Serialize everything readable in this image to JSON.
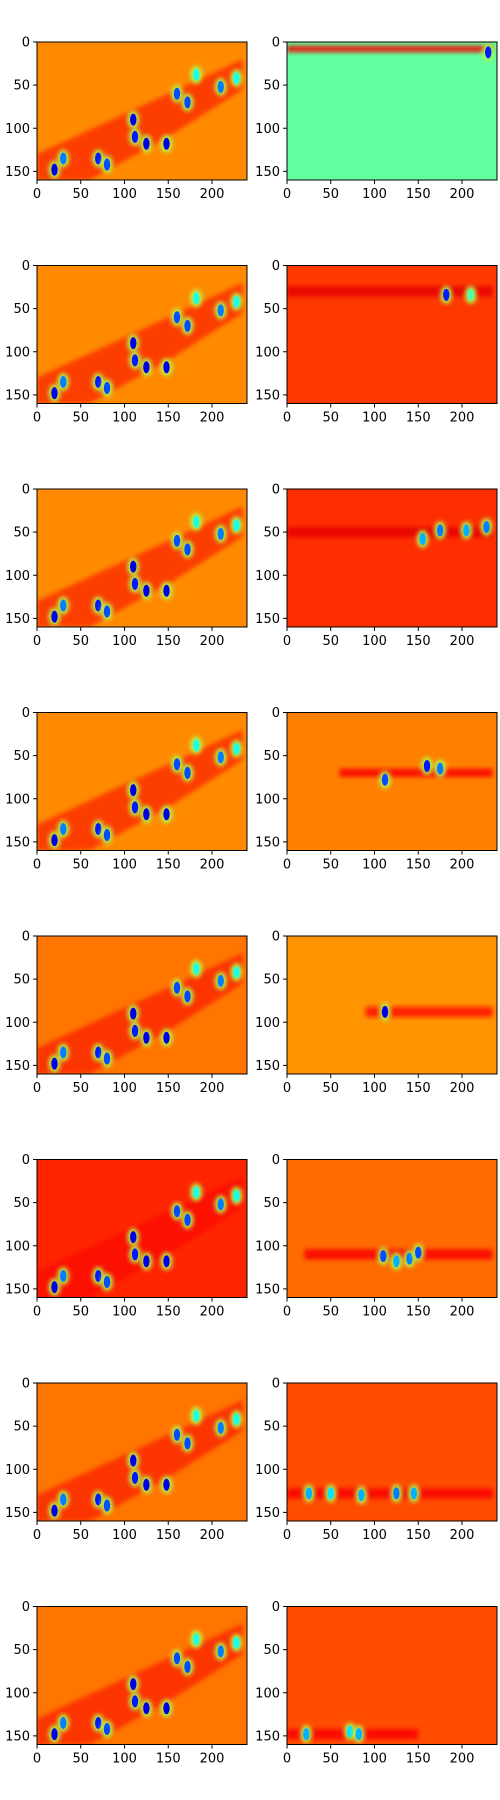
{
  "chart_data": {
    "type": "heatmap",
    "layout": {
      "rows": 8,
      "cols": 2
    },
    "colormap": "jet",
    "axes": {
      "x_ticks": [
        0,
        50,
        100,
        150,
        200
      ],
      "y_ticks": [
        0,
        50,
        100,
        150
      ],
      "xlim": [
        0,
        240
      ],
      "ylim": [
        160,
        0
      ],
      "y_inverted": true
    },
    "panels": [
      {
        "row": 0,
        "col": 0,
        "bg": 0.74,
        "blobs": [
          [
            20,
            148,
            0.1
          ],
          [
            30,
            135,
            0.25
          ],
          [
            70,
            135,
            0.15
          ],
          [
            80,
            142,
            0.2
          ],
          [
            110,
            90,
            0.1
          ],
          [
            112,
            110,
            0.15
          ],
          [
            125,
            118,
            0.1
          ],
          [
            148,
            118,
            0.1
          ],
          [
            160,
            60,
            0.2
          ],
          [
            172,
            70,
            0.2
          ],
          [
            182,
            38,
            0.4
          ],
          [
            210,
            52,
            0.25
          ],
          [
            228,
            42,
            0.4
          ]
        ],
        "bands": []
      },
      {
        "row": 0,
        "col": 1,
        "bg": 0.47,
        "blobs": [
          [
            230,
            12,
            0.15
          ]
        ],
        "bands": [
          [
            0,
            235,
            8,
            0.88,
            4
          ]
        ]
      },
      {
        "row": 1,
        "col": 0,
        "bg": 0.74,
        "blobs": [
          [
            20,
            148,
            0.1
          ],
          [
            30,
            135,
            0.25
          ],
          [
            70,
            135,
            0.15
          ],
          [
            80,
            142,
            0.2
          ],
          [
            110,
            90,
            0.1
          ],
          [
            112,
            110,
            0.15
          ],
          [
            125,
            118,
            0.1
          ],
          [
            148,
            118,
            0.1
          ],
          [
            160,
            60,
            0.2
          ],
          [
            172,
            70,
            0.2
          ],
          [
            182,
            38,
            0.4
          ],
          [
            210,
            52,
            0.25
          ],
          [
            228,
            42,
            0.4
          ]
        ],
        "bands": []
      },
      {
        "row": 1,
        "col": 1,
        "bg": 0.82,
        "blobs": [
          [
            182,
            34,
            0.15
          ],
          [
            210,
            34,
            0.45
          ]
        ],
        "bands": [
          [
            0,
            235,
            30,
            0.9,
            6
          ]
        ]
      },
      {
        "row": 2,
        "col": 0,
        "bg": 0.74,
        "blobs": [
          [
            20,
            148,
            0.1
          ],
          [
            30,
            135,
            0.25
          ],
          [
            70,
            135,
            0.15
          ],
          [
            80,
            142,
            0.2
          ],
          [
            110,
            90,
            0.1
          ],
          [
            112,
            110,
            0.15
          ],
          [
            125,
            118,
            0.1
          ],
          [
            148,
            118,
            0.1
          ],
          [
            160,
            60,
            0.2
          ],
          [
            172,
            70,
            0.2
          ],
          [
            182,
            38,
            0.4
          ],
          [
            210,
            52,
            0.25
          ],
          [
            228,
            42,
            0.4
          ]
        ],
        "bands": []
      },
      {
        "row": 2,
        "col": 1,
        "bg": 0.83,
        "blobs": [
          [
            155,
            58,
            0.3
          ],
          [
            175,
            48,
            0.25
          ],
          [
            205,
            48,
            0.3
          ],
          [
            228,
            44,
            0.25
          ]
        ],
        "bands": [
          [
            0,
            235,
            50,
            0.9,
            6
          ]
        ]
      },
      {
        "row": 3,
        "col": 0,
        "bg": 0.74,
        "blobs": [
          [
            20,
            148,
            0.1
          ],
          [
            30,
            135,
            0.25
          ],
          [
            70,
            135,
            0.15
          ],
          [
            80,
            142,
            0.2
          ],
          [
            110,
            90,
            0.1
          ],
          [
            112,
            110,
            0.15
          ],
          [
            125,
            118,
            0.1
          ],
          [
            148,
            118,
            0.1
          ],
          [
            160,
            60,
            0.2
          ],
          [
            172,
            70,
            0.2
          ],
          [
            182,
            38,
            0.4
          ],
          [
            210,
            52,
            0.25
          ],
          [
            228,
            42,
            0.4
          ]
        ],
        "bands": []
      },
      {
        "row": 3,
        "col": 1,
        "bg": 0.75,
        "blobs": [
          [
            112,
            78,
            0.2
          ],
          [
            160,
            62,
            0.15
          ],
          [
            175,
            65,
            0.25
          ]
        ],
        "bands": [
          [
            60,
            235,
            70,
            0.88,
            5
          ]
        ]
      },
      {
        "row": 4,
        "col": 0,
        "bg": 0.76,
        "blobs": [
          [
            20,
            148,
            0.1
          ],
          [
            30,
            135,
            0.25
          ],
          [
            70,
            135,
            0.15
          ],
          [
            80,
            142,
            0.2
          ],
          [
            110,
            90,
            0.1
          ],
          [
            112,
            110,
            0.15
          ],
          [
            125,
            118,
            0.1
          ],
          [
            148,
            118,
            0.1
          ],
          [
            160,
            60,
            0.2
          ],
          [
            172,
            70,
            0.2
          ],
          [
            182,
            38,
            0.4
          ],
          [
            210,
            52,
            0.25
          ],
          [
            228,
            42,
            0.4
          ]
        ],
        "bands": []
      },
      {
        "row": 4,
        "col": 1,
        "bg": 0.73,
        "blobs": [
          [
            112,
            88,
            0.1
          ]
        ],
        "bands": [
          [
            90,
            235,
            88,
            0.86,
            6
          ]
        ]
      },
      {
        "row": 5,
        "col": 0,
        "bg": 0.84,
        "blobs": [
          [
            20,
            148,
            0.1
          ],
          [
            30,
            135,
            0.25
          ],
          [
            70,
            135,
            0.15
          ],
          [
            80,
            142,
            0.2
          ],
          [
            110,
            90,
            0.1
          ],
          [
            112,
            110,
            0.15
          ],
          [
            125,
            118,
            0.1
          ],
          [
            148,
            118,
            0.1
          ],
          [
            160,
            60,
            0.2
          ],
          [
            172,
            70,
            0.2
          ],
          [
            182,
            38,
            0.4
          ],
          [
            210,
            52,
            0.25
          ],
          [
            228,
            42,
            0.4
          ]
        ],
        "bands": []
      },
      {
        "row": 5,
        "col": 1,
        "bg": 0.77,
        "blobs": [
          [
            110,
            112,
            0.2
          ],
          [
            125,
            118,
            0.3
          ],
          [
            140,
            115,
            0.25
          ],
          [
            150,
            108,
            0.2
          ]
        ],
        "bands": [
          [
            20,
            235,
            110,
            0.88,
            6
          ]
        ]
      },
      {
        "row": 6,
        "col": 0,
        "bg": 0.76,
        "blobs": [
          [
            20,
            148,
            0.1
          ],
          [
            30,
            135,
            0.25
          ],
          [
            70,
            135,
            0.15
          ],
          [
            80,
            142,
            0.2
          ],
          [
            110,
            90,
            0.1
          ],
          [
            112,
            110,
            0.15
          ],
          [
            125,
            118,
            0.1
          ],
          [
            148,
            118,
            0.1
          ],
          [
            160,
            60,
            0.2
          ],
          [
            172,
            70,
            0.2
          ],
          [
            182,
            38,
            0.4
          ],
          [
            210,
            52,
            0.25
          ],
          [
            228,
            42,
            0.4
          ]
        ],
        "bands": []
      },
      {
        "row": 6,
        "col": 1,
        "bg": 0.8,
        "blobs": [
          [
            25,
            128,
            0.3
          ],
          [
            50,
            128,
            0.35
          ],
          [
            85,
            130,
            0.3
          ],
          [
            125,
            128,
            0.25
          ],
          [
            145,
            128,
            0.3
          ]
        ],
        "bands": [
          [
            0,
            235,
            128,
            0.88,
            6
          ]
        ]
      },
      {
        "row": 7,
        "col": 0,
        "bg": 0.76,
        "blobs": [
          [
            20,
            148,
            0.1
          ],
          [
            30,
            135,
            0.25
          ],
          [
            70,
            135,
            0.15
          ],
          [
            80,
            142,
            0.2
          ],
          [
            110,
            90,
            0.1
          ],
          [
            112,
            110,
            0.15
          ],
          [
            125,
            118,
            0.1
          ],
          [
            148,
            118,
            0.1
          ],
          [
            160,
            60,
            0.2
          ],
          [
            172,
            70,
            0.2
          ],
          [
            182,
            38,
            0.4
          ],
          [
            210,
            52,
            0.25
          ],
          [
            228,
            42,
            0.4
          ]
        ],
        "bands": []
      },
      {
        "row": 7,
        "col": 1,
        "bg": 0.8,
        "blobs": [
          [
            22,
            148,
            0.3
          ],
          [
            72,
            145,
            0.35
          ],
          [
            82,
            148,
            0.3
          ]
        ],
        "bands": [
          [
            0,
            150,
            148,
            0.88,
            6
          ]
        ]
      }
    ]
  }
}
